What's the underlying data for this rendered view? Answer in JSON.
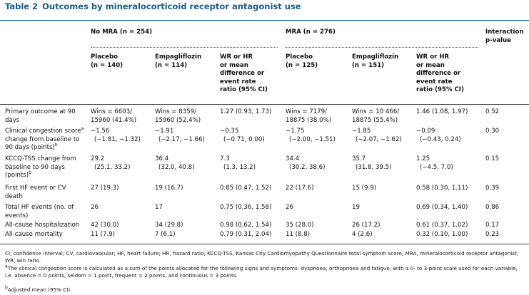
{
  "title": {
    "label": "Table 2",
    "text": "Outcomes by mineralocorticoid receptor antagonist use"
  },
  "groups": [
    "No MRA (n = 254)",
    "MRA (n = 276)"
  ],
  "columns": [
    [
      "Placebo",
      "(n = 140)"
    ],
    [
      "Empagliflozin",
      "(n = 114)"
    ],
    [
      "WR or HR",
      "or mean",
      "difference or",
      "event rate",
      "ratio (95% CI)"
    ],
    [
      "Placebo",
      "(n = 125)"
    ],
    [
      "Empagliflozin",
      "(n = 151)"
    ],
    [
      "WR or HR",
      "or mean",
      "difference or",
      "event rate",
      "ratio (95% CI)"
    ],
    [
      "Interaction",
      "p-value"
    ]
  ],
  "rows": [
    {
      "label": [
        {
          "text": "Primary outcome at 90 days"
        }
      ],
      "cells": [
        [
          "Wins = 6603/",
          "15960 (41.4%)"
        ],
        [
          "Wins = 8359/",
          "15960 (52.4%)"
        ],
        "1.27 (0.93, 1.73)",
        [
          "Wins = 7179/",
          "18875 (38.0%)"
        ],
        [
          "Wins = 10 466/",
          "18875 (55.4%)"
        ],
        "1.46 (1.08, 1.97)",
        "0.52"
      ]
    },
    {
      "label": [
        {
          "text": "Clinical congestion score"
        },
        {
          "sup": "a"
        },
        {
          "text": " change from baseline to 90 days (points)"
        },
        {
          "sup": "b"
        }
      ],
      "cells": [
        [
          "−1.56",
          "(−1.81, −1.32)"
        ],
        [
          "−1.91",
          "(−2.17, −1.66)"
        ],
        [
          "−0.35",
          "(−0.71, 0.00)"
        ],
        [
          "−1.75",
          "(−2.00, −1.51)"
        ],
        [
          "−1.85",
          "(−2.07, −1.62)"
        ],
        [
          "−0.09",
          "(−0.43, 0.24)"
        ],
        "0.30"
      ]
    },
    {
      "label": [
        {
          "text": "KCCQ-TSS change from baseline to 90 days (points)"
        },
        {
          "sup": "b"
        }
      ],
      "cells": [
        [
          "29.2",
          "(25.1, 33.2)"
        ],
        [
          "36.4",
          "(32.0, 40.8)"
        ],
        [
          "7.3",
          "(1.3, 13.2)"
        ],
        [
          "34.4",
          "(30.2, 38.6)"
        ],
        [
          "35.7",
          "(31.8, 39.5)"
        ],
        [
          "1.25",
          "(−4.5, 7.0)"
        ],
        "0.15"
      ]
    },
    {
      "label": [
        {
          "text": "First HF event or CV death"
        }
      ],
      "cells": [
        "27 (19.3)",
        "19 (16.7)",
        "0.85 (0.47, 1.52)",
        "22 (17.6)",
        "15 (9.9)",
        "0.58 (0.30, 1.11)",
        "0.39"
      ]
    },
    {
      "label": [
        {
          "text": "Total HF events (no. of events)"
        }
      ],
      "cells": [
        "26",
        "17",
        "0.75 (0.36, 1.58)",
        "26",
        "19",
        "0.69 (0.34, 1.40)",
        "0.86"
      ]
    },
    {
      "label": [
        {
          "text": "All-cause hospitalization"
        }
      ],
      "cells": [
        "42 (30.0)",
        "34 (29.8)",
        "0.98 (0.62, 1.54)",
        "35 (28.0)",
        "26 (17.2)",
        "0.61 (0.37, 1.02)",
        "0.17"
      ]
    },
    {
      "label": [
        {
          "text": "All-cause mortality"
        }
      ],
      "cells": [
        "11 (7.9)",
        "7 (6.1)",
        "0.79 (0.31, 2.04)",
        "11 (8.8)",
        "4 (2.6)",
        "0.32 (0.10, 1.00)",
        "0.23"
      ]
    }
  ],
  "footnotes": [
    [
      {
        "text": "CI, confidence interval; CV, cardiovascular; HF, heart failure; HR, hazard ratio; KCCQ-TSS, Kansas City Cardiomyopathy Questionnaire total symptom score; MRA, mineralocorticoid receptor antagonist; WR, win ratio."
      }
    ],
    [
      {
        "sup": "a"
      },
      {
        "text": "The clinical congestion score is calculated as a sum of the points allocated for the following signs and symptoms: dyspnoea, orthopnoea and fatigue, with a 0- to 3-point scale used for each variable, i.e. absence = 0 points, seldom = 1 point, frequent = 2 points, and continuous = 3 points."
      }
    ],
    [
      {
        "sup": "b"
      },
      {
        "text": "Adjusted mean (95% CI)."
      }
    ]
  ]
}
